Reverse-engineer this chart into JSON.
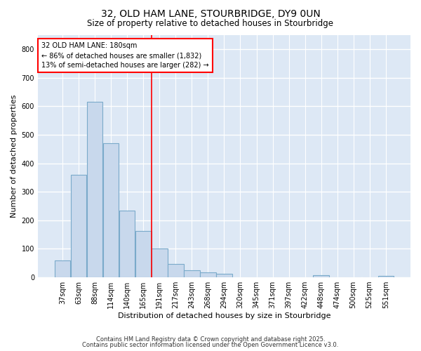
{
  "title1": "32, OLD HAM LANE, STOURBRIDGE, DY9 0UN",
  "title2": "Size of property relative to detached houses in Stourbridge",
  "xlabel": "Distribution of detached houses by size in Stourbridge",
  "ylabel": "Number of detached properties",
  "categories": [
    "37sqm",
    "63sqm",
    "88sqm",
    "114sqm",
    "140sqm",
    "165sqm",
    "191sqm",
    "217sqm",
    "243sqm",
    "268sqm",
    "294sqm",
    "320sqm",
    "345sqm",
    "371sqm",
    "397sqm",
    "422sqm",
    "448sqm",
    "474sqm",
    "500sqm",
    "525sqm",
    "551sqm"
  ],
  "bar_heights": [
    60,
    360,
    615,
    470,
    235,
    163,
    100,
    47,
    25,
    18,
    13,
    0,
    0,
    0,
    0,
    0,
    7,
    0,
    0,
    0,
    5
  ],
  "bar_color": "#c8d8ec",
  "bar_edge_color": "#7aaaca",
  "plot_bg_color": "#dde8f5",
  "fig_bg_color": "#ffffff",
  "grid_color": "#ffffff",
  "red_line_index": 6,
  "annotation_title": "32 OLD HAM LANE: 180sqm",
  "annotation_line1": "← 86% of detached houses are smaller (1,832)",
  "annotation_line2": "13% of semi-detached houses are larger (282) →",
  "ylim": [
    0,
    850
  ],
  "yticks": [
    0,
    100,
    200,
    300,
    400,
    500,
    600,
    700,
    800
  ],
  "footer1": "Contains HM Land Registry data © Crown copyright and database right 2025.",
  "footer2": "Contains public sector information licensed under the Open Government Licence v3.0."
}
